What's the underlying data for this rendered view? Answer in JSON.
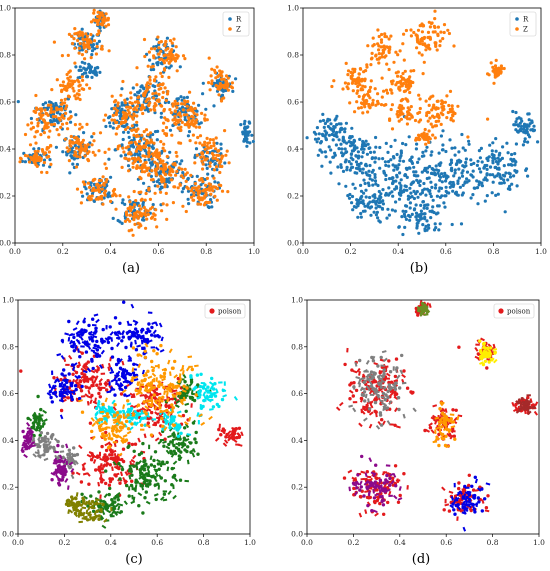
{
  "chart_data": [
    {
      "panel": "a",
      "caption": "(a)",
      "type": "scatter",
      "xlim": [
        0.0,
        1.0
      ],
      "ylim": [
        0.0,
        1.0
      ],
      "xticks": [
        "0.0",
        "0.2",
        "0.4",
        "0.6",
        "0.8",
        "1.0"
      ],
      "yticks": [
        "0.0",
        "0.2",
        "0.4",
        "0.6",
        "0.8",
        "1.0"
      ],
      "legend_position": "top-right",
      "grid": false,
      "series": [
        {
          "name": "R",
          "color": "#1f77b4",
          "clusters": [
            [
              0.36,
              0.95,
              0.02,
              0.03
            ],
            [
              0.3,
              0.85,
              0.05,
              0.04
            ],
            [
              0.31,
              0.73,
              0.04,
              0.03
            ],
            [
              0.16,
              0.56,
              0.07,
              0.06
            ],
            [
              0.08,
              0.36,
              0.04,
              0.03
            ],
            [
              0.26,
              0.4,
              0.05,
              0.05
            ],
            [
              0.44,
              0.54,
              0.05,
              0.04
            ],
            [
              0.52,
              0.4,
              0.08,
              0.08
            ],
            [
              0.55,
              0.62,
              0.06,
              0.06
            ],
            [
              0.62,
              0.8,
              0.05,
              0.05
            ],
            [
              0.7,
              0.55,
              0.07,
              0.07
            ],
            [
              0.62,
              0.3,
              0.08,
              0.08
            ],
            [
              0.5,
              0.14,
              0.06,
              0.05
            ],
            [
              0.77,
              0.22,
              0.06,
              0.06
            ],
            [
              0.82,
              0.36,
              0.05,
              0.05
            ],
            [
              0.97,
              0.46,
              0.02,
              0.05
            ],
            [
              0.35,
              0.23,
              0.05,
              0.04
            ],
            [
              0.86,
              0.67,
              0.04,
              0.04
            ]
          ]
        },
        {
          "name": "Z",
          "color": "#ff7f0e",
          "clusters": [
            [
              0.36,
              0.95,
              0.03,
              0.03
            ],
            [
              0.3,
              0.85,
              0.06,
              0.05
            ],
            [
              0.24,
              0.66,
              0.06,
              0.05
            ],
            [
              0.14,
              0.52,
              0.08,
              0.08
            ],
            [
              0.1,
              0.36,
              0.05,
              0.04
            ],
            [
              0.27,
              0.4,
              0.06,
              0.06
            ],
            [
              0.46,
              0.55,
              0.06,
              0.05
            ],
            [
              0.52,
              0.4,
              0.09,
              0.09
            ],
            [
              0.56,
              0.62,
              0.07,
              0.07
            ],
            [
              0.63,
              0.8,
              0.06,
              0.06
            ],
            [
              0.71,
              0.54,
              0.08,
              0.08
            ],
            [
              0.62,
              0.3,
              0.09,
              0.09
            ],
            [
              0.52,
              0.13,
              0.07,
              0.06
            ],
            [
              0.78,
              0.22,
              0.07,
              0.06
            ],
            [
              0.82,
              0.38,
              0.06,
              0.06
            ],
            [
              0.35,
              0.22,
              0.06,
              0.05
            ],
            [
              0.86,
              0.68,
              0.04,
              0.05
            ]
          ]
        }
      ]
    },
    {
      "panel": "b",
      "caption": "(b)",
      "type": "scatter",
      "xlim": [
        0.0,
        1.0
      ],
      "ylim": [
        0.0,
        1.0
      ],
      "xticks": [
        "0.0",
        "0.2",
        "0.4",
        "0.6",
        "0.8",
        "1.0"
      ],
      "yticks": [
        "0.0",
        "0.2",
        "0.4",
        "0.6",
        "0.8",
        "1.0"
      ],
      "legend_position": "top-right",
      "grid": false,
      "series": [
        {
          "name": "R",
          "color": "#1f77b4",
          "clusters": [
            [
              0.2,
              0.38,
              0.1,
              0.1
            ],
            [
              0.4,
              0.28,
              0.12,
              0.12
            ],
            [
              0.62,
              0.3,
              0.12,
              0.12
            ],
            [
              0.82,
              0.32,
              0.08,
              0.1
            ],
            [
              0.93,
              0.48,
              0.04,
              0.06
            ],
            [
              0.12,
              0.48,
              0.06,
              0.06
            ],
            [
              0.5,
              0.1,
              0.08,
              0.06
            ],
            [
              0.28,
              0.16,
              0.08,
              0.06
            ]
          ]
        },
        {
          "name": "Z",
          "color": "#ff7f0e",
          "clusters": [
            [
              0.22,
              0.7,
              0.06,
              0.05
            ],
            [
              0.33,
              0.83,
              0.05,
              0.05
            ],
            [
              0.28,
              0.6,
              0.05,
              0.04
            ],
            [
              0.42,
              0.68,
              0.06,
              0.05
            ],
            [
              0.52,
              0.87,
              0.07,
              0.07
            ],
            [
              0.57,
              0.56,
              0.08,
              0.06
            ],
            [
              0.43,
              0.55,
              0.04,
              0.04
            ],
            [
              0.81,
              0.73,
              0.03,
              0.03
            ],
            [
              0.51,
              0.45,
              0.03,
              0.02
            ]
          ]
        }
      ]
    },
    {
      "panel": "c",
      "caption": "(c)",
      "type": "scatter",
      "xlim": [
        0.0,
        1.0
      ],
      "ylim": [
        0.0,
        1.0
      ],
      "xticks": [
        "0.0",
        "0.2",
        "0.4",
        "0.6",
        "0.8",
        "1.0"
      ],
      "yticks": [
        "0.0",
        "0.2",
        "0.4",
        "0.6",
        "0.8",
        "1.0"
      ],
      "legend_position": "top-right",
      "grid": false,
      "series": [
        {
          "name": "poison",
          "color": "#e31a1c",
          "clusters": [
            [
              0.92,
              0.42,
              0.04,
              0.03
            ],
            [
              0.6,
              0.55,
              0.1,
              0.1
            ],
            [
              0.4,
              0.3,
              0.1,
              0.1
            ],
            [
              0.3,
              0.65,
              0.1,
              0.1
            ]
          ]
        },
        {
          "name": "",
          "color": "#0000e6",
          "clusters": [
            [
              0.3,
              0.82,
              0.1,
              0.08
            ],
            [
              0.52,
              0.84,
              0.08,
              0.08
            ],
            [
              0.2,
              0.62,
              0.06,
              0.06
            ],
            [
              0.45,
              0.67,
              0.06,
              0.05
            ]
          ]
        },
        {
          "name": "",
          "color": "#1a7a1a",
          "clusters": [
            [
              0.55,
              0.26,
              0.12,
              0.1
            ],
            [
              0.7,
              0.38,
              0.06,
              0.06
            ],
            [
              0.72,
              0.6,
              0.05,
              0.05
            ],
            [
              0.38,
              0.12,
              0.08,
              0.05
            ],
            [
              0.08,
              0.48,
              0.03,
              0.05
            ]
          ]
        },
        {
          "name": "",
          "color": "#00e5ee",
          "clusters": [
            [
              0.82,
              0.6,
              0.06,
              0.06
            ],
            [
              0.5,
              0.5,
              0.06,
              0.04
            ],
            [
              0.38,
              0.52,
              0.05,
              0.04
            ],
            [
              0.66,
              0.48,
              0.04,
              0.04
            ]
          ]
        },
        {
          "name": "",
          "color": "#7f7f7f",
          "clusters": [
            [
              0.12,
              0.38,
              0.05,
              0.05
            ],
            [
              0.22,
              0.32,
              0.04,
              0.04
            ]
          ]
        },
        {
          "name": "",
          "color": "#808000",
          "clusters": [
            [
              0.32,
              0.1,
              0.06,
              0.04
            ],
            [
              0.24,
              0.12,
              0.03,
              0.03
            ]
          ]
        },
        {
          "name": "",
          "color": "#8b0a8b",
          "clusters": [
            [
              0.18,
              0.28,
              0.04,
              0.06
            ],
            [
              0.04,
              0.4,
              0.02,
              0.06
            ]
          ]
        },
        {
          "name": "",
          "color": "#ff9900",
          "clusters": [
            [
              0.6,
              0.62,
              0.12,
              0.12
            ],
            [
              0.4,
              0.45,
              0.08,
              0.08
            ]
          ]
        }
      ]
    },
    {
      "panel": "d",
      "caption": "(d)",
      "type": "scatter",
      "xlim": [
        0.0,
        1.0
      ],
      "ylim": [
        0.0,
        1.0
      ],
      "xticks": [
        "0.0",
        "0.2",
        "0.4",
        "0.6",
        "0.8",
        "1.0"
      ],
      "yticks": [
        "0.0",
        "0.2",
        "0.4",
        "0.6",
        "0.8",
        "1.0"
      ],
      "legend_position": "top-right",
      "grid": false,
      "series": [
        {
          "name": "poison",
          "color": "#e31a1c",
          "clusters": [
            [
              0.3,
              0.62,
              0.1,
              0.12
            ],
            [
              0.3,
              0.2,
              0.09,
              0.08
            ],
            [
              0.68,
              0.15,
              0.07,
              0.06
            ],
            [
              0.59,
              0.47,
              0.05,
              0.07
            ],
            [
              0.94,
              0.55,
              0.04,
              0.03
            ],
            [
              0.77,
              0.78,
              0.04,
              0.04
            ],
            [
              0.5,
              0.96,
              0.02,
              0.02
            ]
          ]
        },
        {
          "name": "",
          "color": "#7f7f7f",
          "clusters": [
            [
              0.3,
              0.62,
              0.09,
              0.11
            ]
          ]
        },
        {
          "name": "",
          "color": "#8b0a8b",
          "clusters": [
            [
              0.3,
              0.2,
              0.08,
              0.07
            ]
          ]
        },
        {
          "name": "",
          "color": "#0000e6",
          "clusters": [
            [
              0.69,
              0.14,
              0.06,
              0.06
            ]
          ]
        },
        {
          "name": "",
          "color": "#ff9900",
          "clusters": [
            [
              0.59,
              0.47,
              0.04,
              0.06
            ]
          ]
        },
        {
          "name": "",
          "color": "#a52a2a",
          "clusters": [
            [
              0.94,
              0.55,
              0.03,
              0.03
            ]
          ]
        },
        {
          "name": "",
          "color": "#ffee00",
          "clusters": [
            [
              0.77,
              0.78,
              0.04,
              0.04
            ]
          ]
        },
        {
          "name": "",
          "color": "#6b8e23",
          "clusters": [
            [
              0.5,
              0.96,
              0.02,
              0.02
            ]
          ]
        }
      ]
    }
  ]
}
